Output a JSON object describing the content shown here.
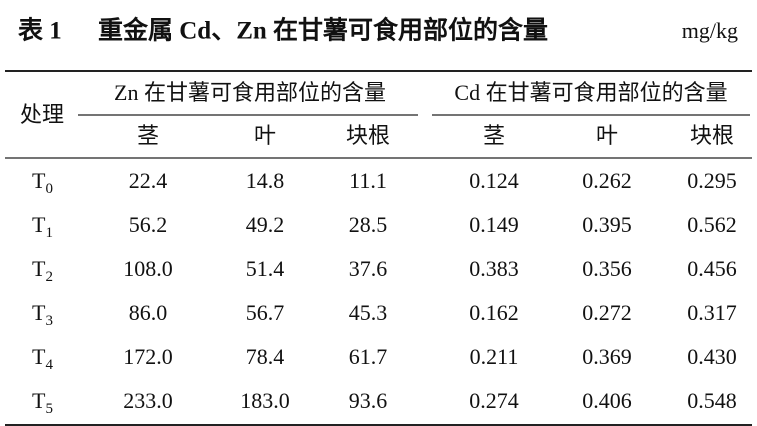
{
  "header": {
    "label": "表 1",
    "title": "重金属 Cd、Zn 在甘薯可食用部位的含量",
    "unit": "mg/kg"
  },
  "table": {
    "row_header": "处理",
    "groups": [
      {
        "name": "Zn 在甘薯可食用部位的含量",
        "columns": [
          "茎",
          "叶",
          "块根"
        ]
      },
      {
        "name": "Cd 在甘薯可食用部位的含量",
        "columns": [
          "茎",
          "叶",
          "块根"
        ]
      }
    ],
    "rows": [
      {
        "treatment": {
          "letter": "T",
          "subscript": "0"
        },
        "cells": [
          "22.4",
          "14.8",
          "11.1",
          "0.124",
          "0.262",
          "0.295"
        ]
      },
      {
        "treatment": {
          "letter": "T",
          "subscript": "1"
        },
        "cells": [
          "56.2",
          "49.2",
          "28.5",
          "0.149",
          "0.395",
          "0.562"
        ]
      },
      {
        "treatment": {
          "letter": "T",
          "subscript": "2"
        },
        "cells": [
          "108.0",
          "51.4",
          "37.6",
          "0.383",
          "0.356",
          "0.456"
        ]
      },
      {
        "treatment": {
          "letter": "T",
          "subscript": "3"
        },
        "cells": [
          "86.0",
          "56.7",
          "45.3",
          "0.162",
          "0.272",
          "0.317"
        ]
      },
      {
        "treatment": {
          "letter": "T",
          "subscript": "4"
        },
        "cells": [
          "172.0",
          "78.4",
          "61.7",
          "0.211",
          "0.369",
          "0.430"
        ]
      },
      {
        "treatment": {
          "letter": "T",
          "subscript": "5"
        },
        "cells": [
          "233.0",
          "183.0",
          "93.6",
          "0.274",
          "0.406",
          "0.548"
        ]
      }
    ]
  }
}
